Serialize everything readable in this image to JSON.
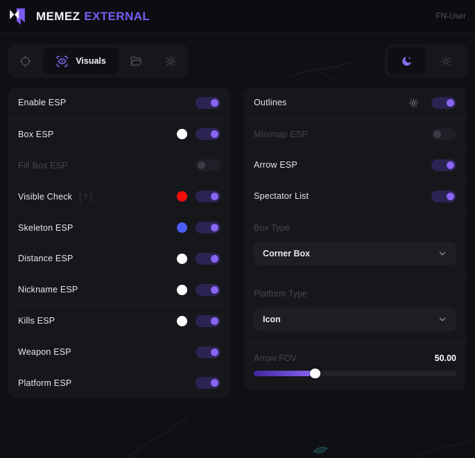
{
  "header": {
    "brand": "MEMEZ",
    "brand_accent": "EXTERNAL",
    "username": "FN-User"
  },
  "toolbar": {
    "tabs": [
      {
        "name": "aim",
        "icon": "crosshair-icon",
        "label": "",
        "active": false
      },
      {
        "name": "visuals",
        "icon": "eye-scan-icon",
        "label": "Visuals",
        "active": true
      },
      {
        "name": "configs",
        "icon": "folder-icon",
        "label": "",
        "active": false
      },
      {
        "name": "settings",
        "icon": "gear-icon",
        "label": "",
        "active": false
      }
    ],
    "theme_toggle": {
      "options": [
        "moon",
        "sun"
      ],
      "active": "moon"
    }
  },
  "panels": {
    "left": {
      "rows": [
        {
          "label": "Enable ESP",
          "toggle": "on"
        },
        {
          "label": "Box ESP",
          "swatch": "#ffffff",
          "toggle": "on"
        },
        {
          "label": "Fill Box ESP",
          "toggle": "off",
          "disabled": true
        },
        {
          "label": "Visible Check",
          "hint": "[ ? ]",
          "swatch": "#f50d0d",
          "toggle": "on"
        },
        {
          "label": "Skeleton ESP",
          "swatch": "#4a5ef2",
          "toggle": "on"
        },
        {
          "label": "Distance ESP",
          "swatch": "#ffffff",
          "toggle": "on"
        },
        {
          "label": "Nickname ESP",
          "swatch": "#ffffff",
          "toggle": "on"
        },
        {
          "label": "Kills ESP",
          "swatch": "#ffffff",
          "toggle": "on"
        },
        {
          "label": "Weapon ESP",
          "toggle": "on"
        },
        {
          "label": "Platform ESP",
          "toggle": "on"
        }
      ]
    },
    "right": {
      "rows": [
        {
          "label": "Outlines",
          "gear": true,
          "toggle": "on"
        },
        {
          "label": "Minimap ESP",
          "toggle": "off",
          "disabled": true
        },
        {
          "label": "Arrow ESP",
          "toggle": "on"
        },
        {
          "label": "Spectator List",
          "toggle": "on"
        }
      ],
      "selects": [
        {
          "label": "Box Type",
          "value": "Corner Box"
        },
        {
          "label": "Platform Type",
          "value": "Icon"
        }
      ],
      "slider": {
        "label": "Arrow FOV",
        "value": "50.00",
        "percent": 30
      }
    }
  },
  "colors": {
    "accent": "#7c5cf5",
    "toggle_on_track": "#2b2452",
    "toggle_knob": "#8a64f3",
    "swatch_red": "#f50d0d",
    "swatch_blue": "#4a5ef2",
    "swatch_white": "#ffffff"
  }
}
